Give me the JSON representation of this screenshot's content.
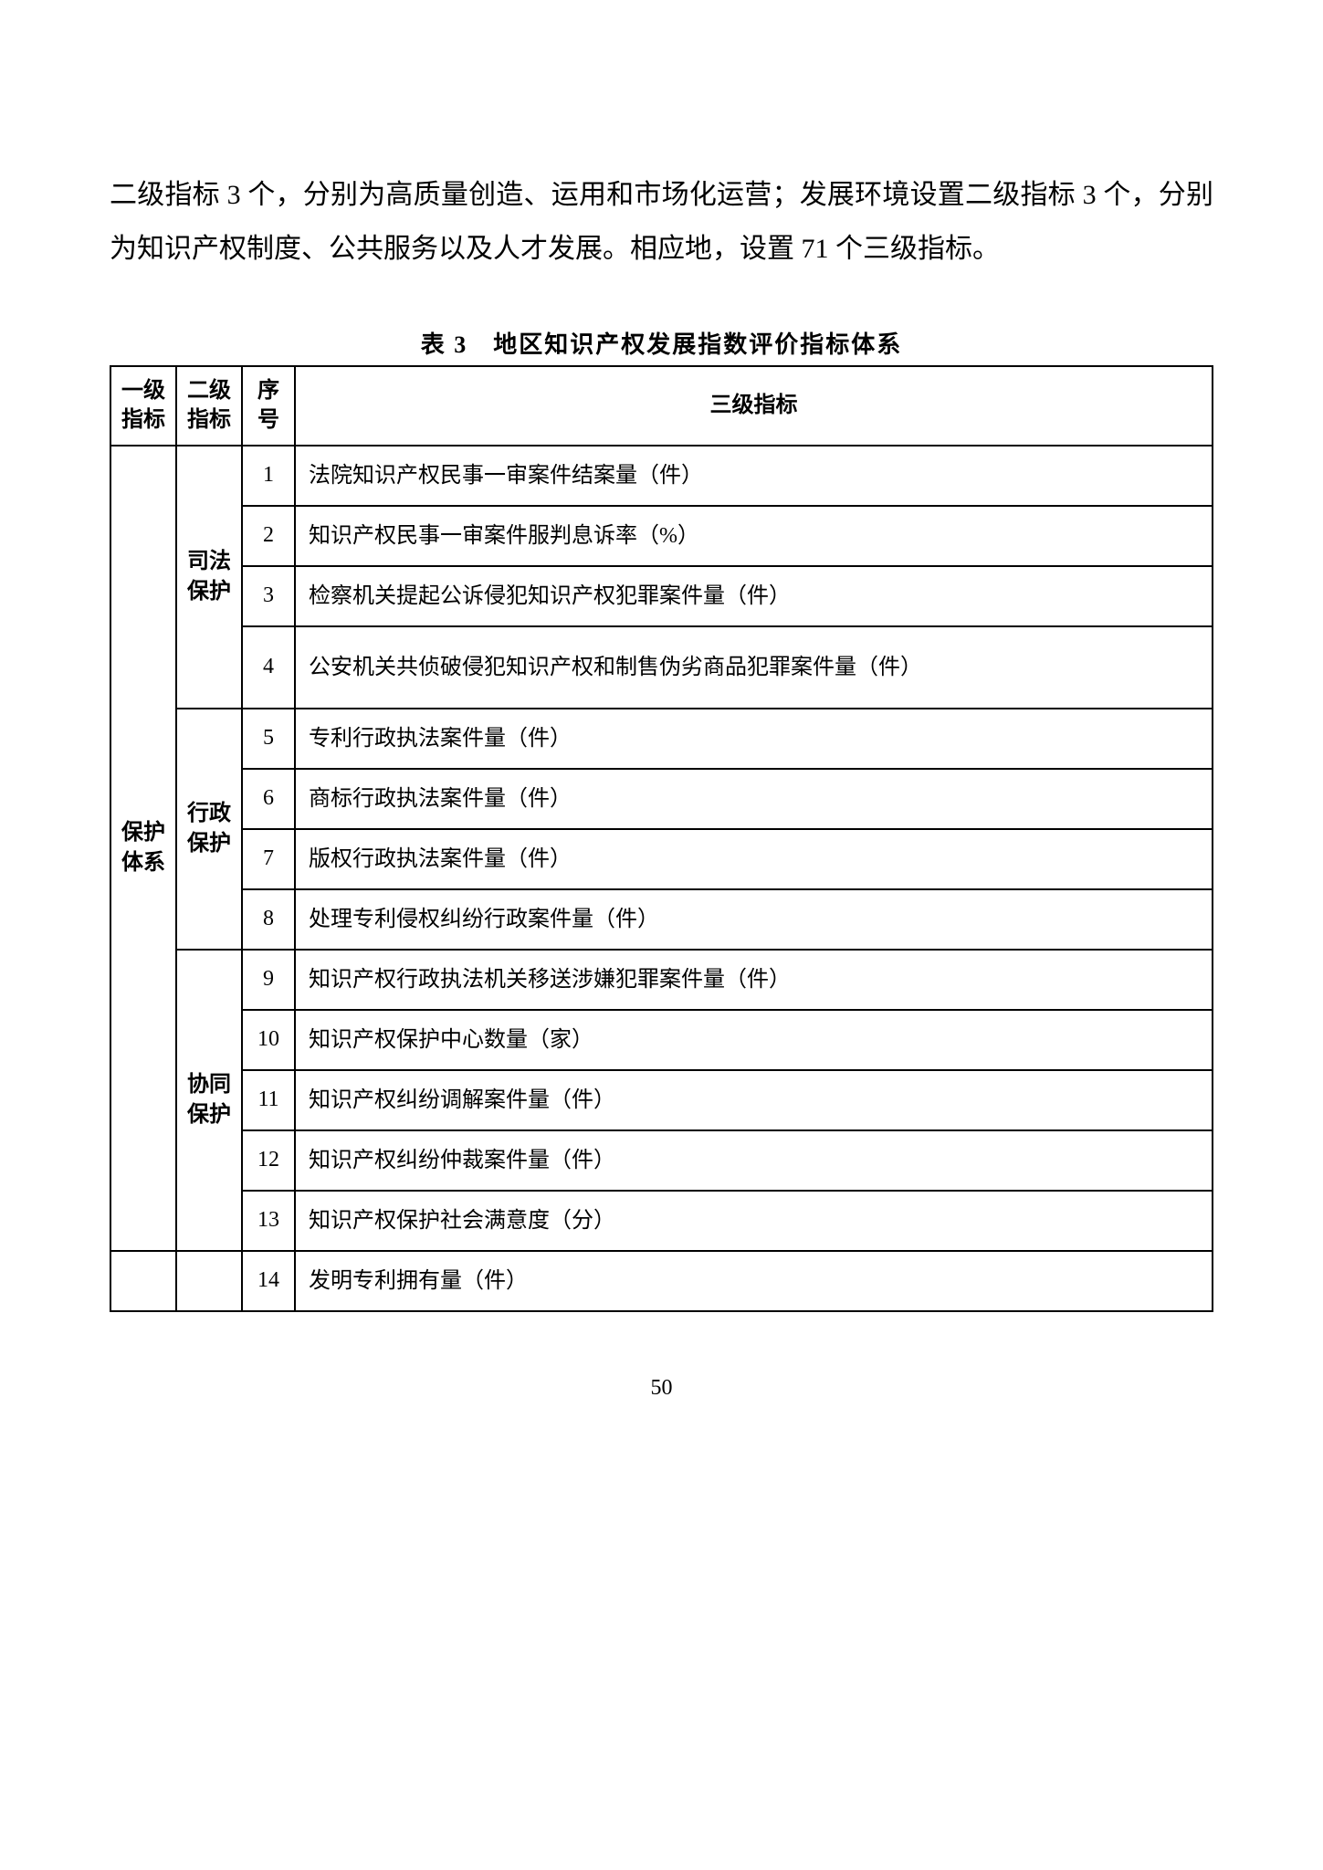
{
  "paragraph": "二级指标 3 个，分别为高质量创造、运用和市场化运营；发展环境设置二级指标 3 个，分别为知识产权制度、公共服务以及人才发展。相应地，设置 71 个三级指标。",
  "table": {
    "caption": "表 3　地区知识产权发展指数评价指标体系",
    "headers": {
      "lvl1": "一级指标",
      "lvl2": "二级指标",
      "seq": "序号",
      "lvl3": "三级指标"
    },
    "lvl1": {
      "protection_system": "保护体系"
    },
    "lvl2": {
      "judicial": "司法保护",
      "administrative": "行政保护",
      "collaborative": "协同保护"
    },
    "rows": [
      {
        "n": "1",
        "t": "法院知识产权民事一审案件结案量（件）"
      },
      {
        "n": "2",
        "t": "知识产权民事一审案件服判息诉率（%）"
      },
      {
        "n": "3",
        "t": "检察机关提起公诉侵犯知识产权犯罪案件量（件）"
      },
      {
        "n": "4",
        "t": "公安机关共侦破侵犯知识产权和制售伪劣商品犯罪案件量（件）"
      },
      {
        "n": "5",
        "t": "专利行政执法案件量（件）"
      },
      {
        "n": "6",
        "t": "商标行政执法案件量（件）"
      },
      {
        "n": "7",
        "t": "版权行政执法案件量（件）"
      },
      {
        "n": "8",
        "t": "处理专利侵权纠纷行政案件量（件）"
      },
      {
        "n": "9",
        "t": "知识产权行政执法机关移送涉嫌犯罪案件量（件）"
      },
      {
        "n": "10",
        "t": "知识产权保护中心数量（家）"
      },
      {
        "n": "11",
        "t": "知识产权纠纷调解案件量（件）"
      },
      {
        "n": "12",
        "t": "知识产权纠纷仲裁案件量（件）"
      },
      {
        "n": "13",
        "t": "知识产权保护社会满意度（分）"
      },
      {
        "n": "14",
        "t": "发明专利拥有量（件）"
      }
    ]
  },
  "page_number": "50",
  "style": {
    "font_body_pt": 30,
    "font_table_pt": 24,
    "border_color": "#000000",
    "text_color": "#000000",
    "background_color": "#ffffff"
  }
}
